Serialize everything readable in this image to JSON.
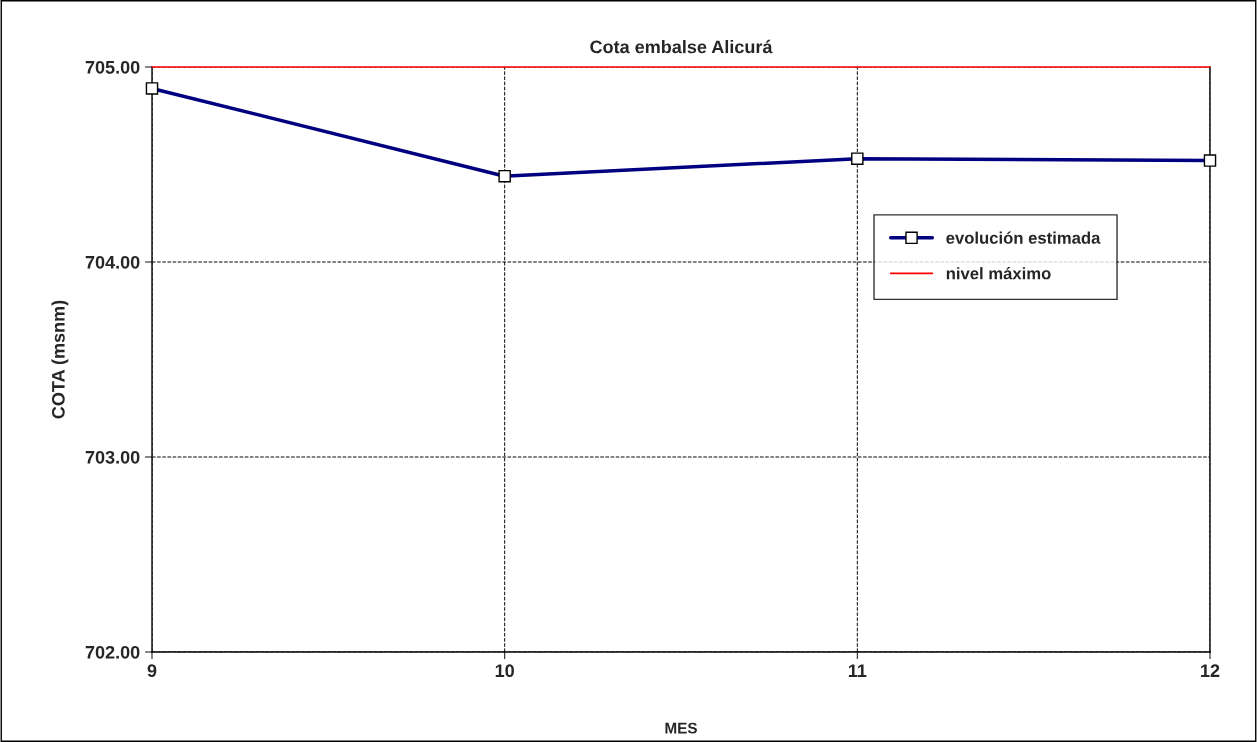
{
  "chart_data": {
    "type": "line",
    "title": "Cota embalse Alicurá",
    "xlabel": "MES",
    "ylabel": "COTA (msnm)",
    "x": [
      9,
      10,
      11,
      12
    ],
    "series": [
      {
        "name": "evolución estimada",
        "color": "#000080",
        "values": [
          704.89,
          704.44,
          704.53,
          704.52
        ],
        "marker": "square",
        "line_style": "solid"
      },
      {
        "name": "nivel máximo",
        "color": "#ff0000",
        "values": [
          705,
          705,
          705,
          705
        ],
        "marker": "none",
        "line_style": "solid"
      }
    ],
    "xlim": [
      9,
      12
    ],
    "xticks": [
      9,
      10,
      11,
      12
    ],
    "ylim": [
      702,
      705
    ],
    "yticks": [
      {
        "value": 702,
        "label": "702.00"
      },
      {
        "value": 703,
        "label": "703.00"
      },
      {
        "value": 704,
        "label": "704.00"
      },
      {
        "value": 705,
        "label": "705.00"
      }
    ],
    "grid": true,
    "legend": "right"
  }
}
